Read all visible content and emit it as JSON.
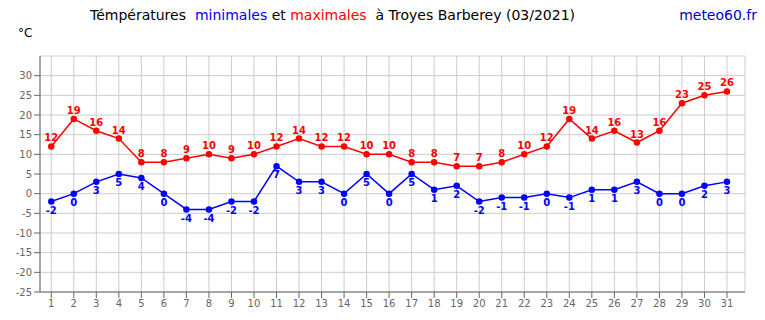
{
  "chart_data": {
    "type": "line",
    "title": "Témpératures  minimales et maximales  à Troyes Barberey (03/2021)",
    "y_label": "°C",
    "annotations": [
      {
        "text": "meteo60.fr",
        "color": "#0000cc"
      }
    ],
    "x": [
      1,
      2,
      3,
      4,
      5,
      6,
      7,
      8,
      9,
      10,
      11,
      12,
      13,
      14,
      15,
      16,
      17,
      18,
      19,
      20,
      21,
      22,
      23,
      24,
      25,
      26,
      27,
      28,
      29,
      30,
      31
    ],
    "series": [
      {
        "name": "maximales",
        "color": "red",
        "values": [
          12,
          19,
          16,
          14,
          8,
          8,
          9,
          10,
          9,
          10,
          12,
          14,
          12,
          12,
          10,
          10,
          8,
          8,
          7,
          7,
          8,
          10,
          12,
          19,
          14,
          16,
          13,
          16,
          23,
          25,
          26
        ]
      },
      {
        "name": "minimales",
        "color": "blue",
        "values": [
          -2,
          0,
          3,
          5,
          4,
          0,
          -4,
          -4,
          -2,
          -2,
          7,
          3,
          3,
          0,
          5,
          0,
          5,
          1,
          2,
          -2,
          -1,
          -1,
          0,
          -1,
          1,
          1,
          3,
          0,
          0,
          2,
          3
        ]
      }
    ],
    "xlim": [
      0.5,
      31.8
    ],
    "xticks": [
      1,
      2,
      3,
      4,
      5,
      6,
      7,
      8,
      9,
      10,
      11,
      12,
      13,
      14,
      15,
      16,
      17,
      18,
      19,
      20,
      21,
      22,
      23,
      24,
      25,
      26,
      27,
      28,
      29,
      30,
      31
    ],
    "ylim": [
      -25,
      35
    ],
    "yticks": [
      -25,
      -20,
      -15,
      -10,
      -5,
      0,
      5,
      10,
      15,
      20,
      25,
      30
    ],
    "grid": true,
    "data_labels": true,
    "marker": "circle"
  }
}
